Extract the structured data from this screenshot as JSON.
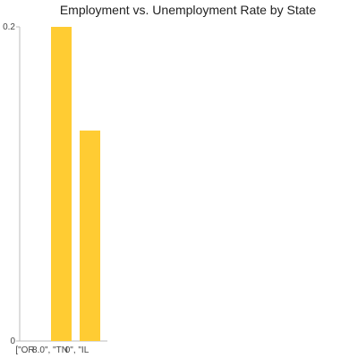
{
  "chart_data": {
    "type": "bar",
    "title": "Employment vs. Unemployment Rate by State",
    "xlabel": "",
    "ylabel": "",
    "categories": [
      "[\"OR",
      "8.0\", \"TN",
      "0\", \"IL"
    ],
    "values": [
      0,
      0.2,
      0.134
    ],
    "ylim": [
      0,
      0.2
    ],
    "yticks": [
      "0",
      "0.2"
    ],
    "grid": false,
    "legend": "none",
    "bar_color": "#ffcc33"
  }
}
